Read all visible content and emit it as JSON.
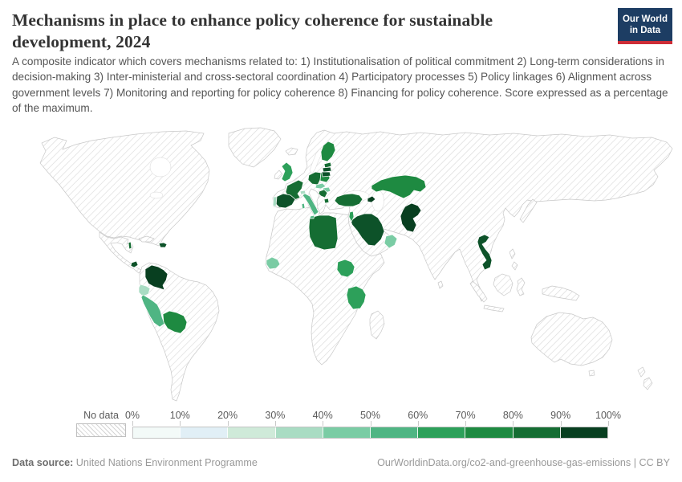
{
  "header": {
    "title": "Mechanisms in place to enhance policy coherence for sustainable development, 2024",
    "subtitle": "A composite indicator which covers mechanisms related to: 1) Institutionalisation of political commitment 2) Long-term considerations in decision-making 3) Inter-ministerial and cross-sectoral coordination 4) Participatory processes 5) Policy linkages 6) Alignment across government levels 7) Monitoring and reporting for policy coherence 8) Financing for policy coherence. Score expressed as a percentage of the maximum.",
    "logo": {
      "line1": "Our World",
      "line2": "in Data",
      "bg_color": "#1d3d63",
      "accent_color": "#cd2d37"
    }
  },
  "legend": {
    "no_data_label": "No data",
    "tick_labels": [
      "0%",
      "10%",
      "20%",
      "30%",
      "40%",
      "50%",
      "60%",
      "70%",
      "80%",
      "90%",
      "100%"
    ],
    "colors": [
      "#f3faf8",
      "#e1eff6",
      "#cfead9",
      "#a9dcc3",
      "#7acca4",
      "#4fb583",
      "#2da05a",
      "#1e8a41",
      "#156d33",
      "#083f20"
    ]
  },
  "map": {
    "no_data_style": "diagonal-hatch",
    "colored_regions": [
      {
        "name": "belize",
        "color": "#156d33"
      },
      {
        "name": "costa-rica",
        "color": "#0d5229"
      },
      {
        "name": "dominican-republic",
        "color": "#0d5229"
      },
      {
        "name": "colombia",
        "color": "#083f20"
      },
      {
        "name": "ecuador",
        "color": "#a9dcc3"
      },
      {
        "name": "peru",
        "color": "#4fb583"
      },
      {
        "name": "bolivia",
        "color": "#1e8a41"
      },
      {
        "name": "guinea",
        "color": "#7acca4"
      },
      {
        "name": "libya",
        "color": "#156d33"
      },
      {
        "name": "south-sudan",
        "color": "#2da05a"
      },
      {
        "name": "tanzania",
        "color": "#2da05a"
      },
      {
        "name": "saudi-arabia",
        "color": "#0d5229"
      },
      {
        "name": "oman",
        "color": "#7acca4"
      },
      {
        "name": "jordan",
        "color": "#2da05a"
      },
      {
        "name": "turkey",
        "color": "#156d33"
      },
      {
        "name": "azerbaijan",
        "color": "#083f20"
      },
      {
        "name": "kazakhstan",
        "color": "#1e8a41"
      },
      {
        "name": "pakistan",
        "color": "#083f20"
      },
      {
        "name": "vietnam",
        "color": "#0d5229"
      },
      {
        "name": "united-kingdom",
        "color": "#2da05a"
      },
      {
        "name": "france",
        "color": "#156d33"
      },
      {
        "name": "spain",
        "color": "#0d5229"
      },
      {
        "name": "portugal",
        "color": "#a9dcc3"
      },
      {
        "name": "germany",
        "color": "#156d33"
      },
      {
        "name": "poland",
        "color": "#1e8a41"
      },
      {
        "name": "czechia",
        "color": "#7acca4"
      },
      {
        "name": "hungary",
        "color": "#7acca4"
      },
      {
        "name": "switzerland",
        "color": "#a9dcc3"
      },
      {
        "name": "italy",
        "color": "#4fb583"
      },
      {
        "name": "croatia-serbia",
        "color": "#156d33"
      },
      {
        "name": "north-macedonia",
        "color": "#156d33"
      },
      {
        "name": "finland",
        "color": "#1e8a41"
      },
      {
        "name": "estonia",
        "color": "#156d33"
      },
      {
        "name": "latvia",
        "color": "#0d5229"
      },
      {
        "name": "lithuania",
        "color": "#0d5229"
      }
    ]
  },
  "footer": {
    "source_label": "Data source:",
    "source_value": "United Nations Environment Programme",
    "link": "OurWorldinData.org/co2-and-greenhouse-gas-emissions | CC BY"
  },
  "chart_data": {
    "type": "heatmap",
    "subtype": "world-choropleth",
    "title": "Mechanisms in place to enhance policy coherence for sustainable development, 2024",
    "unit": "% of maximum score",
    "legend_position": "bottom",
    "colorscale_ticks": [
      "0%",
      "10%",
      "20%",
      "30%",
      "40%",
      "50%",
      "60%",
      "70%",
      "80%",
      "90%",
      "100%"
    ],
    "series": [
      {
        "entity": "Colombia",
        "approx_value": 95
      },
      {
        "entity": "Ecuador",
        "approx_value": 35
      },
      {
        "entity": "Peru",
        "approx_value": 55
      },
      {
        "entity": "Bolivia",
        "approx_value": 75
      },
      {
        "entity": "Costa Rica",
        "approx_value": 85
      },
      {
        "entity": "Belize",
        "approx_value": 80
      },
      {
        "entity": "Dominican Republic",
        "approx_value": 85
      },
      {
        "entity": "Guinea",
        "approx_value": 45
      },
      {
        "entity": "Libya",
        "approx_value": 80
      },
      {
        "entity": "South Sudan",
        "approx_value": 65
      },
      {
        "entity": "Tanzania",
        "approx_value": 65
      },
      {
        "entity": "Saudi Arabia",
        "approx_value": 85
      },
      {
        "entity": "Oman",
        "approx_value": 45
      },
      {
        "entity": "Jordan",
        "approx_value": 65
      },
      {
        "entity": "Turkey",
        "approx_value": 80
      },
      {
        "entity": "Azerbaijan",
        "approx_value": 95
      },
      {
        "entity": "Kazakhstan",
        "approx_value": 75
      },
      {
        "entity": "Pakistan",
        "approx_value": 95
      },
      {
        "entity": "Vietnam",
        "approx_value": 85
      },
      {
        "entity": "United Kingdom",
        "approx_value": 65
      },
      {
        "entity": "France",
        "approx_value": 80
      },
      {
        "entity": "Spain",
        "approx_value": 85
      },
      {
        "entity": "Portugal",
        "approx_value": 35
      },
      {
        "entity": "Germany",
        "approx_value": 80
      },
      {
        "entity": "Poland",
        "approx_value": 75
      },
      {
        "entity": "Czechia",
        "approx_value": 45
      },
      {
        "entity": "Hungary",
        "approx_value": 45
      },
      {
        "entity": "Switzerland",
        "approx_value": 35
      },
      {
        "entity": "Italy",
        "approx_value": 55
      },
      {
        "entity": "Serbia/Croatia",
        "approx_value": 80
      },
      {
        "entity": "North Macedonia",
        "approx_value": 80
      },
      {
        "entity": "Finland",
        "approx_value": 75
      },
      {
        "entity": "Estonia",
        "approx_value": 80
      },
      {
        "entity": "Latvia",
        "approx_value": 85
      },
      {
        "entity": "Lithuania",
        "approx_value": 85
      }
    ],
    "all_other_countries": "no data (hatched)"
  }
}
